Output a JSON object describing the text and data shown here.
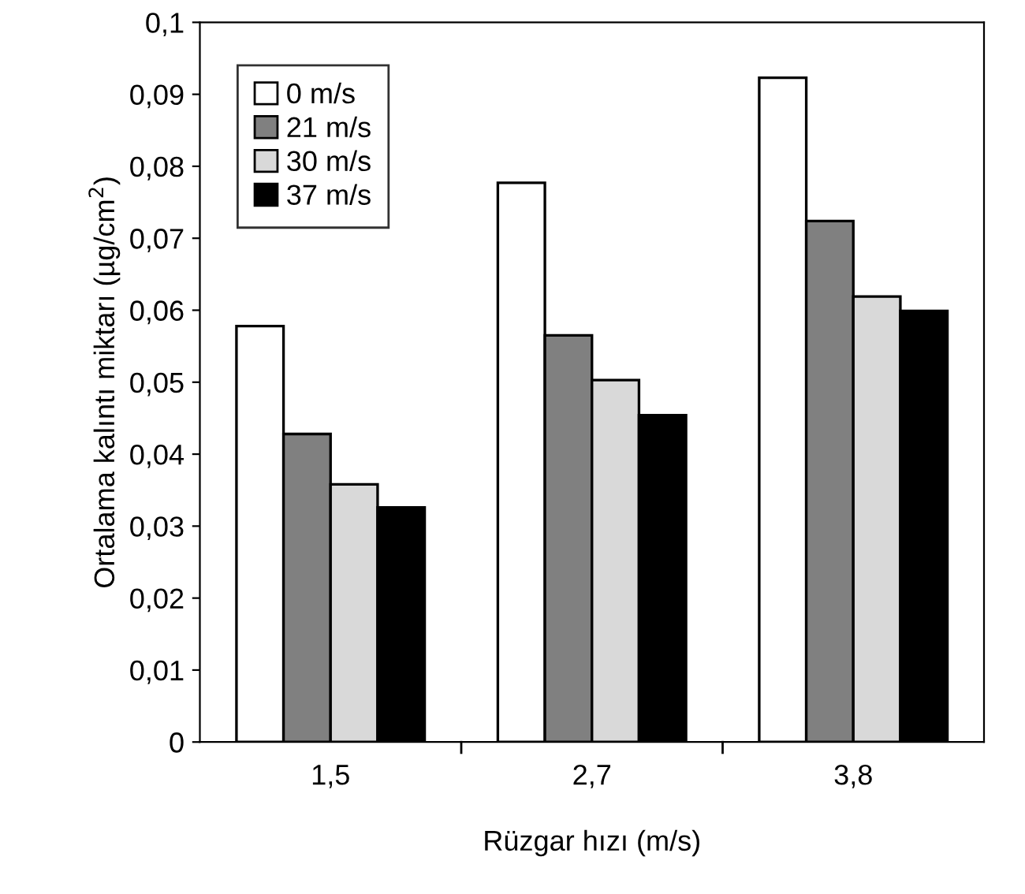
{
  "chart_data": {
    "type": "bar",
    "xlabel": "Rüzgar hızı (m/s)",
    "ylabel": "Ortalama kalıntı miktarı (µg/cm$^{2}$)",
    "categories": [
      "1,5",
      "2,7",
      "3,8"
    ],
    "series": [
      {
        "name": "0 m/s",
        "color": "#ffffff",
        "values": [
          0.0578,
          0.0777,
          0.0923
        ]
      },
      {
        "name": "21 m/s",
        "color": "#808080",
        "values": [
          0.0428,
          0.0565,
          0.0724
        ]
      },
      {
        "name": "30 m/s",
        "color": "#d9d9d9",
        "values": [
          0.0358,
          0.0503,
          0.0619
        ]
      },
      {
        "name": "37 m/s",
        "color": "#000000",
        "values": [
          0.0326,
          0.0454,
          0.0599
        ]
      }
    ],
    "ylim": [
      0,
      0.1
    ],
    "yticks": [
      0,
      {
        "value": 0.01,
        "label": "0,01"
      },
      {
        "value": 0.02,
        "label": "0,02"
      },
      {
        "value": 0.03,
        "label": "0,03"
      },
      {
        "value": 0.04,
        "label": "0,04"
      },
      {
        "value": 0.05,
        "label": "0,05"
      },
      {
        "value": 0.06,
        "label": "0,06"
      },
      {
        "value": 0.07,
        "label": "0,07"
      },
      {
        "value": 0.08,
        "label": "0,08"
      },
      {
        "value": 0.09,
        "label": "0,09"
      },
      {
        "value": 0.1,
        "label": "0,1"
      }
    ],
    "grid": false,
    "legend": "top left"
  }
}
